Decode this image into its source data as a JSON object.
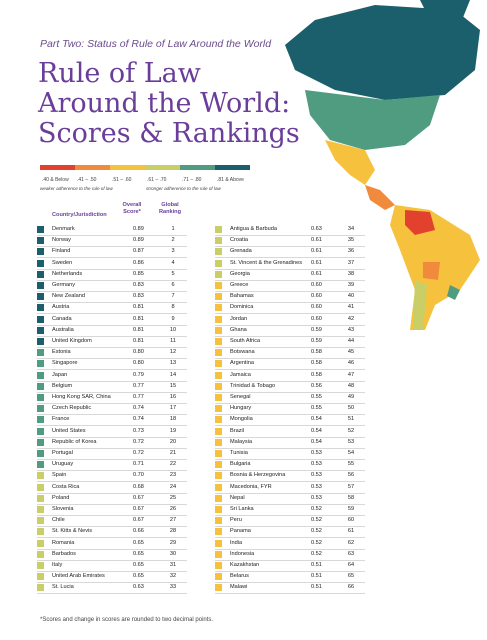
{
  "header": {
    "part": "Part Two: Status of Rule of Law Around the World",
    "title": [
      "Rule of Law",
      "Around the World:",
      "Scores & Rankings"
    ]
  },
  "legend": {
    "items": [
      {
        "label": ".40 & Below",
        "color": "#e2412d"
      },
      {
        "label": ".41 – .50",
        "color": "#f08a3c"
      },
      {
        "label": ".51 – .60",
        "color": "#f6c23e"
      },
      {
        "label": ".61 – .70",
        "color": "#c9cf66"
      },
      {
        "label": ".71 – .80",
        "color": "#4f9c80"
      },
      {
        "label": ".81 & Above",
        "color": "#1c5f6c"
      }
    ],
    "weaker": "weaker adherence to the rule of law",
    "stronger": "stronger adherence to the rule of law"
  },
  "table": {
    "columns": [
      "Country/Jurisdiction",
      "Overall Score*",
      "Global Ranking"
    ],
    "rows": [
      {
        "country": "Denmark",
        "score": "0.89",
        "rank": 1,
        "color": "#1c5f6c"
      },
      {
        "country": "Norway",
        "score": "0.89",
        "rank": 2,
        "color": "#1c5f6c"
      },
      {
        "country": "Finland",
        "score": "0.87",
        "rank": 3,
        "color": "#1c5f6c"
      },
      {
        "country": "Sweden",
        "score": "0.86",
        "rank": 4,
        "color": "#1c5f6c"
      },
      {
        "country": "Netherlands",
        "score": "0.85",
        "rank": 5,
        "color": "#1c5f6c"
      },
      {
        "country": "Germany",
        "score": "0.83",
        "rank": 6,
        "color": "#1c5f6c"
      },
      {
        "country": "New Zealand",
        "score": "0.83",
        "rank": 7,
        "color": "#1c5f6c"
      },
      {
        "country": "Austria",
        "score": "0.81",
        "rank": 8,
        "color": "#1c5f6c"
      },
      {
        "country": "Canada",
        "score": "0.81",
        "rank": 9,
        "color": "#1c5f6c"
      },
      {
        "country": "Australia",
        "score": "0.81",
        "rank": 10,
        "color": "#1c5f6c"
      },
      {
        "country": "United Kingdom",
        "score": "0.81",
        "rank": 11,
        "color": "#1c5f6c"
      },
      {
        "country": "Estonia",
        "score": "0.80",
        "rank": 12,
        "color": "#4f9c80"
      },
      {
        "country": "Singapore",
        "score": "0.80",
        "rank": 13,
        "color": "#4f9c80"
      },
      {
        "country": "Japan",
        "score": "0.79",
        "rank": 14,
        "color": "#4f9c80"
      },
      {
        "country": "Belgium",
        "score": "0.77",
        "rank": 15,
        "color": "#4f9c80"
      },
      {
        "country": "Hong Kong SAR, China",
        "score": "0.77",
        "rank": 16,
        "color": "#4f9c80"
      },
      {
        "country": "Czech Republic",
        "score": "0.74",
        "rank": 17,
        "color": "#4f9c80"
      },
      {
        "country": "France",
        "score": "0.74",
        "rank": 18,
        "color": "#4f9c80"
      },
      {
        "country": "United States",
        "score": "0.73",
        "rank": 19,
        "color": "#4f9c80"
      },
      {
        "country": "Republic of Korea",
        "score": "0.72",
        "rank": 20,
        "color": "#4f9c80"
      },
      {
        "country": "Portugal",
        "score": "0.72",
        "rank": 21,
        "color": "#4f9c80"
      },
      {
        "country": "Uruguay",
        "score": "0.71",
        "rank": 22,
        "color": "#4f9c80"
      },
      {
        "country": "Spain",
        "score": "0.70",
        "rank": 23,
        "color": "#c9cf66"
      },
      {
        "country": "Costa Rica",
        "score": "0.68",
        "rank": 24,
        "color": "#c9cf66"
      },
      {
        "country": "Poland",
        "score": "0.67",
        "rank": 25,
        "color": "#c9cf66"
      },
      {
        "country": "Slovenia",
        "score": "0.67",
        "rank": 26,
        "color": "#c9cf66"
      },
      {
        "country": "Chile",
        "score": "0.67",
        "rank": 27,
        "color": "#c9cf66"
      },
      {
        "country": "St. Kitts & Nevis",
        "score": "0.66",
        "rank": 28,
        "color": "#c9cf66"
      },
      {
        "country": "Romania",
        "score": "0.65",
        "rank": 29,
        "color": "#c9cf66"
      },
      {
        "country": "Barbados",
        "score": "0.65",
        "rank": 30,
        "color": "#c9cf66"
      },
      {
        "country": "Italy",
        "score": "0.65",
        "rank": 31,
        "color": "#c9cf66"
      },
      {
        "country": "United Arab Emirates",
        "score": "0.65",
        "rank": 32,
        "color": "#c9cf66"
      },
      {
        "country": "St. Lucia",
        "score": "0.63",
        "rank": 33,
        "color": "#c9cf66"
      },
      {
        "country": "Antigua & Barbuda",
        "score": "0.63",
        "rank": 34,
        "color": "#c9cf66"
      },
      {
        "country": "Croatia",
        "score": "0.61",
        "rank": 35,
        "color": "#c9cf66"
      },
      {
        "country": "Grenada",
        "score": "0.61",
        "rank": 36,
        "color": "#c9cf66"
      },
      {
        "country": "St. Vincent & the Grenadines",
        "score": "0.61",
        "rank": 37,
        "color": "#c9cf66"
      },
      {
        "country": "Georgia",
        "score": "0.61",
        "rank": 38,
        "color": "#c9cf66"
      },
      {
        "country": "Greece",
        "score": "0.60",
        "rank": 39,
        "color": "#f6c23e"
      },
      {
        "country": "Bahamas",
        "score": "0.60",
        "rank": 40,
        "color": "#f6c23e"
      },
      {
        "country": "Dominica",
        "score": "0.60",
        "rank": 41,
        "color": "#f6c23e"
      },
      {
        "country": "Jordan",
        "score": "0.60",
        "rank": 42,
        "color": "#f6c23e"
      },
      {
        "country": "Ghana",
        "score": "0.59",
        "rank": 43,
        "color": "#f6c23e"
      },
      {
        "country": "South Africa",
        "score": "0.59",
        "rank": 44,
        "color": "#f6c23e"
      },
      {
        "country": "Botswana",
        "score": "0.58",
        "rank": 45,
        "color": "#f6c23e"
      },
      {
        "country": "Argentina",
        "score": "0.58",
        "rank": 46,
        "color": "#f6c23e"
      },
      {
        "country": "Jamaica",
        "score": "0.58",
        "rank": 47,
        "color": "#f6c23e"
      },
      {
        "country": "Trinidad & Tobago",
        "score": "0.56",
        "rank": 48,
        "color": "#f6c23e"
      },
      {
        "country": "Senegal",
        "score": "0.55",
        "rank": 49,
        "color": "#f6c23e"
      },
      {
        "country": "Hungary",
        "score": "0.55",
        "rank": 50,
        "color": "#f6c23e"
      },
      {
        "country": "Mongolia",
        "score": "0.54",
        "rank": 51,
        "color": "#f6c23e"
      },
      {
        "country": "Brazil",
        "score": "0.54",
        "rank": 52,
        "color": "#f6c23e"
      },
      {
        "country": "Malaysia",
        "score": "0.54",
        "rank": 53,
        "color": "#f6c23e"
      },
      {
        "country": "Tunisia",
        "score": "0.53",
        "rank": 54,
        "color": "#f6c23e"
      },
      {
        "country": "Bulgaria",
        "score": "0.53",
        "rank": 55,
        "color": "#f6c23e"
      },
      {
        "country": "Bosnia & Herzegovina",
        "score": "0.53",
        "rank": 56,
        "color": "#f6c23e"
      },
      {
        "country": "Macedonia, FYR",
        "score": "0.53",
        "rank": 57,
        "color": "#f6c23e"
      },
      {
        "country": "Nepal",
        "score": "0.53",
        "rank": 58,
        "color": "#f6c23e"
      },
      {
        "country": "Sri Lanka",
        "score": "0.52",
        "rank": 59,
        "color": "#f6c23e"
      },
      {
        "country": "Peru",
        "score": "0.52",
        "rank": 60,
        "color": "#f6c23e"
      },
      {
        "country": "Panama",
        "score": "0.52",
        "rank": 61,
        "color": "#f6c23e"
      },
      {
        "country": "India",
        "score": "0.52",
        "rank": 62,
        "color": "#f6c23e"
      },
      {
        "country": "Indonesia",
        "score": "0.52",
        "rank": 63,
        "color": "#f6c23e"
      },
      {
        "country": "Kazakhstan",
        "score": "0.51",
        "rank": 64,
        "color": "#f6c23e"
      },
      {
        "country": "Belarus",
        "score": "0.51",
        "rank": 65,
        "color": "#f6c23e"
      },
      {
        "country": "Malawi",
        "score": "0.51",
        "rank": 66,
        "color": "#f6c23e"
      }
    ]
  },
  "footnote": "*Scores and change in scores are rounded to two decimal points."
}
